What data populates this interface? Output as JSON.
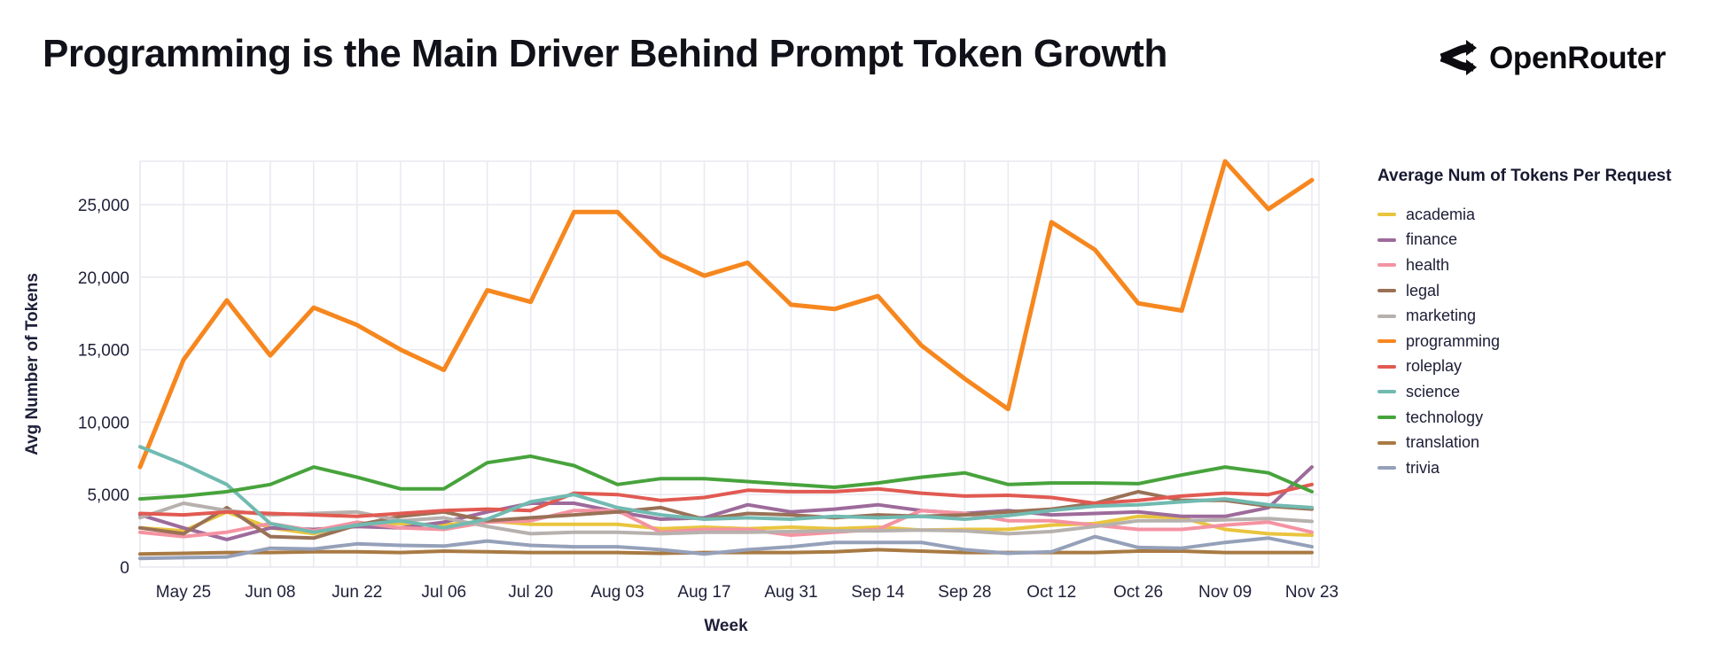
{
  "header": {
    "title": "Programming is the Main Driver Behind Prompt Token Growth",
    "brand": "OpenRouter"
  },
  "chart_data": {
    "type": "line",
    "xlabel": "Week",
    "ylabel": "Avg Number of Tokens",
    "legend_title": "Average Num of Tokens Per Request",
    "legend_position": "right",
    "grid": true,
    "ylim": [
      0,
      28000
    ],
    "y_ticks": [
      0,
      5000,
      10000,
      15000,
      20000,
      25000
    ],
    "x_tick_labels": [
      "May 25",
      "Jun 08",
      "Jun 22",
      "Jul 06",
      "Jul 20",
      "Aug 03",
      "Aug 17",
      "Aug 31",
      "Sep 14",
      "Sep 28",
      "Oct 12",
      "Oct 26",
      "Nov 09",
      "Nov 23"
    ],
    "categories": [
      "May 18",
      "May 25",
      "Jun 01",
      "Jun 08",
      "Jun 15",
      "Jun 22",
      "Jun 29",
      "Jul 06",
      "Jul 13",
      "Jul 20",
      "Jul 27",
      "Aug 03",
      "Aug 10",
      "Aug 17",
      "Aug 24",
      "Aug 31",
      "Sep 07",
      "Sep 14",
      "Sep 21",
      "Sep 28",
      "Oct 05",
      "Oct 12",
      "Oct 19",
      "Oct 26",
      "Nov 02",
      "Nov 09",
      "Nov 16",
      "Nov 23"
    ],
    "series": [
      {
        "name": "academia",
        "color": "#e9c53e",
        "values": [
          2700,
          2500,
          3800,
          2700,
          2300,
          3000,
          3000,
          2900,
          3200,
          2950,
          2950,
          2950,
          2650,
          2750,
          2650,
          2750,
          2650,
          2750,
          2550,
          2600,
          2600,
          2900,
          3000,
          3500,
          3400,
          2600,
          2300,
          2200
        ]
      },
      {
        "name": "finance",
        "color": "#9d6b9b",
        "values": [
          3600,
          2700,
          1900,
          2700,
          2600,
          2800,
          2700,
          3100,
          3800,
          4400,
          4400,
          3800,
          3300,
          3400,
          4300,
          3800,
          4000,
          4300,
          3900,
          3700,
          3900,
          3600,
          3700,
          3800,
          3500,
          3500,
          4100,
          6900
        ]
      },
      {
        "name": "health",
        "color": "#f493a2",
        "values": [
          2400,
          2100,
          2400,
          3000,
          2500,
          3100,
          2700,
          2600,
          3100,
          3200,
          3900,
          3900,
          2400,
          2600,
          2600,
          2200,
          2400,
          2600,
          3900,
          3700,
          3200,
          3200,
          2900,
          2600,
          2600,
          2900,
          3100,
          2400
        ]
      },
      {
        "name": "legal",
        "color": "#9a7156",
        "values": [
          2700,
          2300,
          4100,
          2100,
          2000,
          2900,
          3500,
          3800,
          3200,
          3400,
          3600,
          3800,
          4100,
          3300,
          3700,
          3600,
          3400,
          3600,
          3500,
          3600,
          3800,
          4000,
          4400,
          5200,
          4600,
          4600,
          4200,
          4000
        ]
      },
      {
        "name": "marketing",
        "color": "#b7b1ae",
        "values": [
          3400,
          4400,
          3900,
          3600,
          3700,
          3800,
          3200,
          3400,
          2800,
          2300,
          2400,
          2400,
          2300,
          2400,
          2400,
          2450,
          2500,
          2500,
          2550,
          2500,
          2300,
          2450,
          2800,
          3200,
          3200,
          3250,
          3350,
          3150
        ]
      },
      {
        "name": "programming",
        "color": "#f6871f",
        "values": [
          6900,
          14300,
          18400,
          14600,
          17900,
          16700,
          15000,
          13600,
          19100,
          18300,
          24500,
          24500,
          21500,
          20100,
          21000,
          18100,
          17800,
          18700,
          15300,
          13000,
          10900,
          23800,
          21900,
          18200,
          17700,
          28000,
          24700,
          26700
        ]
      },
      {
        "name": "roleplay",
        "color": "#e15a52",
        "values": [
          3700,
          3600,
          3800,
          3700,
          3600,
          3500,
          3700,
          3900,
          4000,
          3900,
          5100,
          5000,
          4600,
          4800,
          5300,
          5200,
          5200,
          5400,
          5100,
          4900,
          4950,
          4800,
          4400,
          4600,
          4900,
          5100,
          5000,
          5700
        ]
      },
      {
        "name": "science",
        "color": "#71bab1",
        "values": [
          8300,
          7100,
          5700,
          3000,
          2400,
          2900,
          3200,
          2700,
          3300,
          4500,
          5000,
          4100,
          3600,
          3300,
          3400,
          3300,
          3500,
          3400,
          3500,
          3300,
          3550,
          3900,
          4200,
          4300,
          4500,
          4700,
          4300,
          4100
        ]
      },
      {
        "name": "technology",
        "color": "#47a33c",
        "values": [
          4700,
          4900,
          5200,
          5700,
          6900,
          6200,
          5400,
          5400,
          7200,
          7650,
          7000,
          5700,
          6100,
          6100,
          5900,
          5700,
          5500,
          5800,
          6200,
          6500,
          5700,
          5800,
          5800,
          5750,
          6350,
          6900,
          6500,
          5200
        ]
      },
      {
        "name": "translation",
        "color": "#a87a43",
        "values": [
          900,
          950,
          1000,
          1000,
          1050,
          1050,
          1000,
          1100,
          1050,
          1000,
          1000,
          1000,
          950,
          1000,
          1000,
          1000,
          1050,
          1200,
          1100,
          1000,
          1000,
          1000,
          1000,
          1100,
          1100,
          1000,
          1000,
          1000
        ]
      },
      {
        "name": "trivia",
        "color": "#95a0b9",
        "values": [
          600,
          650,
          700,
          1300,
          1250,
          1600,
          1500,
          1450,
          1800,
          1500,
          1400,
          1400,
          1200,
          900,
          1200,
          1400,
          1700,
          1700,
          1700,
          1200,
          950,
          1050,
          2100,
          1350,
          1300,
          1700,
          2000,
          1400
        ]
      }
    ]
  }
}
